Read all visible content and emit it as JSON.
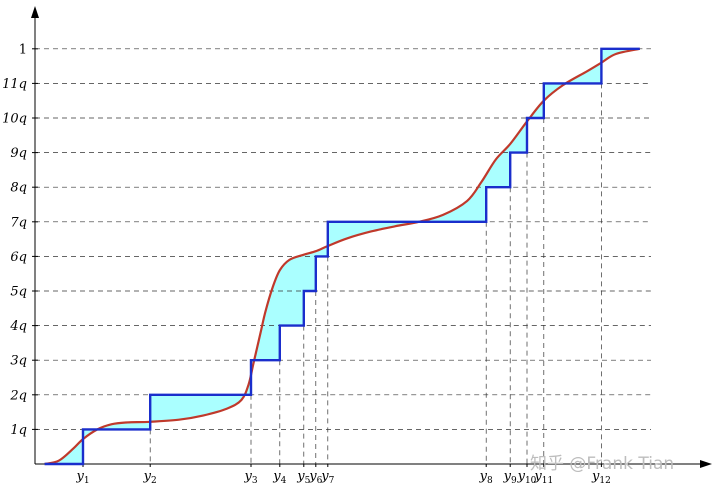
{
  "chart_data": {
    "type": "line",
    "y_tick_labels": [
      "1q",
      "2q",
      "3q",
      "4q",
      "5q",
      "6q",
      "7q",
      "8q",
      "9q",
      "10q",
      "11q",
      "1"
    ],
    "x_ticks": [
      {
        "base": "y",
        "sub": "1",
        "x": 1.0
      },
      {
        "base": "y",
        "sub": "2",
        "x": 2.4
      },
      {
        "base": "y",
        "sub": "3",
        "x": 4.5
      },
      {
        "base": "y",
        "sub": "4",
        "x": 5.1
      },
      {
        "base": "y",
        "sub": "5",
        "x": 5.6
      },
      {
        "base": "y",
        "sub": "6",
        "x": 5.85
      },
      {
        "base": "y",
        "sub": "7",
        "x": 6.1
      },
      {
        "base": "y",
        "sub": "8",
        "x": 9.4
      },
      {
        "base": "y",
        "sub": "9",
        "x": 9.9
      },
      {
        "base": "y",
        "sub": "10",
        "x": 10.25
      },
      {
        "base": "y",
        "sub": "11",
        "x": 10.6
      },
      {
        "base": "y",
        "sub": "12",
        "x": 11.8
      }
    ],
    "xlim": [
      0,
      13
    ],
    "ylim": [
      0,
      12
    ],
    "series": [
      {
        "kind": "step",
        "color": "#1a2ecc",
        "start": [
          0.2,
          0
        ],
        "breaks": [
          1.0,
          2.4,
          4.5,
          5.1,
          5.6,
          5.85,
          6.1,
          9.4,
          9.9,
          10.25,
          10.6,
          11.8
        ],
        "end_x": 12.6
      },
      {
        "kind": "curve",
        "color": "#c0392b",
        "points": [
          [
            0.2,
            0.0
          ],
          [
            0.5,
            0.1
          ],
          [
            0.8,
            0.45
          ],
          [
            1.0,
            0.72
          ],
          [
            1.3,
            1.0
          ],
          [
            1.6,
            1.15
          ],
          [
            1.9,
            1.2
          ],
          [
            2.4,
            1.22
          ],
          [
            3.0,
            1.28
          ],
          [
            3.5,
            1.4
          ],
          [
            4.0,
            1.6
          ],
          [
            4.3,
            1.85
          ],
          [
            4.45,
            2.3
          ],
          [
            4.55,
            2.9
          ],
          [
            4.7,
            3.8
          ],
          [
            4.8,
            4.4
          ],
          [
            4.95,
            5.1
          ],
          [
            5.1,
            5.6
          ],
          [
            5.3,
            5.9
          ],
          [
            5.6,
            6.05
          ],
          [
            5.85,
            6.15
          ],
          [
            6.1,
            6.3
          ],
          [
            6.5,
            6.52
          ],
          [
            7.0,
            6.72
          ],
          [
            7.5,
            6.87
          ],
          [
            8.0,
            7.0
          ],
          [
            8.5,
            7.2
          ],
          [
            9.0,
            7.6
          ],
          [
            9.3,
            8.15
          ],
          [
            9.6,
            8.8
          ],
          [
            9.9,
            9.25
          ],
          [
            10.25,
            9.9
          ],
          [
            10.6,
            10.5
          ],
          [
            11.0,
            10.95
          ],
          [
            11.5,
            11.35
          ],
          [
            11.8,
            11.6
          ],
          [
            12.1,
            11.85
          ],
          [
            12.6,
            12.0
          ]
        ]
      }
    ],
    "fill_color": "#aaffff",
    "grid": "dashed-guides"
  },
  "watermark": "知乎 @Frank Tian"
}
